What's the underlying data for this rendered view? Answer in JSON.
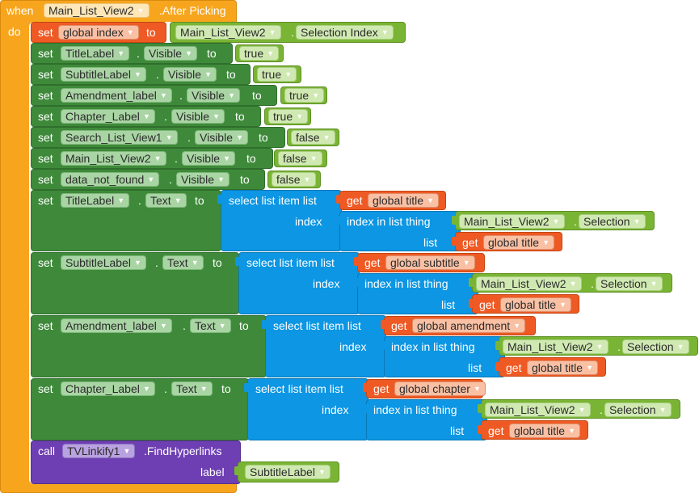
{
  "event": {
    "when": "when",
    "component": "Main_List_View2",
    "event": ".After Picking",
    "do": "do"
  },
  "kw": {
    "set": "set",
    "to": "to",
    "get": "get",
    "call": "call",
    "dot": ".",
    "index": "index",
    "list": "list",
    "select_item": "select list item  list",
    "index_in_list": "index in list  thing"
  },
  "rows": [
    {
      "comp": "global index",
      "target": {
        "comp": "Main_List_View2",
        "prop": "Selection Index"
      }
    },
    {
      "comp": "TitleLabel",
      "prop": "Visible",
      "value": "true"
    },
    {
      "comp": "SubtitleLabel",
      "prop": "Visible",
      "value": "true"
    },
    {
      "comp": "Amendment_label",
      "prop": "Visible",
      "value": "true"
    },
    {
      "comp": "Chapter_Label",
      "prop": "Visible",
      "value": "true"
    },
    {
      "comp": "Search_List_View1",
      "prop": "Visible",
      "value": "false"
    },
    {
      "comp": "Main_List_View2",
      "prop": "Visible",
      "value": "false"
    },
    {
      "comp": "data_not_found",
      "prop": "Visible",
      "value": "false"
    }
  ],
  "text_rows": [
    {
      "comp": "TitleLabel",
      "prop": "Text",
      "list_var": "global title",
      "thing_comp": "Main_List_View2",
      "thing_prop": "Selection",
      "inner_list_var": "global title"
    },
    {
      "comp": "SubtitleLabel",
      "prop": "Text",
      "list_var": "global subtitle",
      "thing_comp": "Main_List_View2",
      "thing_prop": "Selection",
      "inner_list_var": "global title"
    },
    {
      "comp": "Amendment_label",
      "prop": "Text",
      "list_var": "global amendment",
      "thing_comp": "Main_List_View2",
      "thing_prop": "Selection",
      "inner_list_var": "global title"
    },
    {
      "comp": "Chapter_Label",
      "prop": "Text",
      "list_var": "global chapter",
      "thing_comp": "Main_List_View2",
      "thing_prop": "Selection",
      "inner_list_var": "global title"
    }
  ],
  "call": {
    "comp": "TVLinkify1",
    "method": ".FindHyperlinks",
    "arg_label": "label",
    "arg_value": "SubtitleLabel"
  },
  "colors": {
    "event": "#f8a51e",
    "set_component": "#3e8a3a",
    "set_variable": "#ef5a24",
    "value": "#7ab434",
    "list": "#0c96e3",
    "procedure": "#6e3fb2"
  },
  "icons": {
    "dropdown": "chevron-down-icon"
  }
}
